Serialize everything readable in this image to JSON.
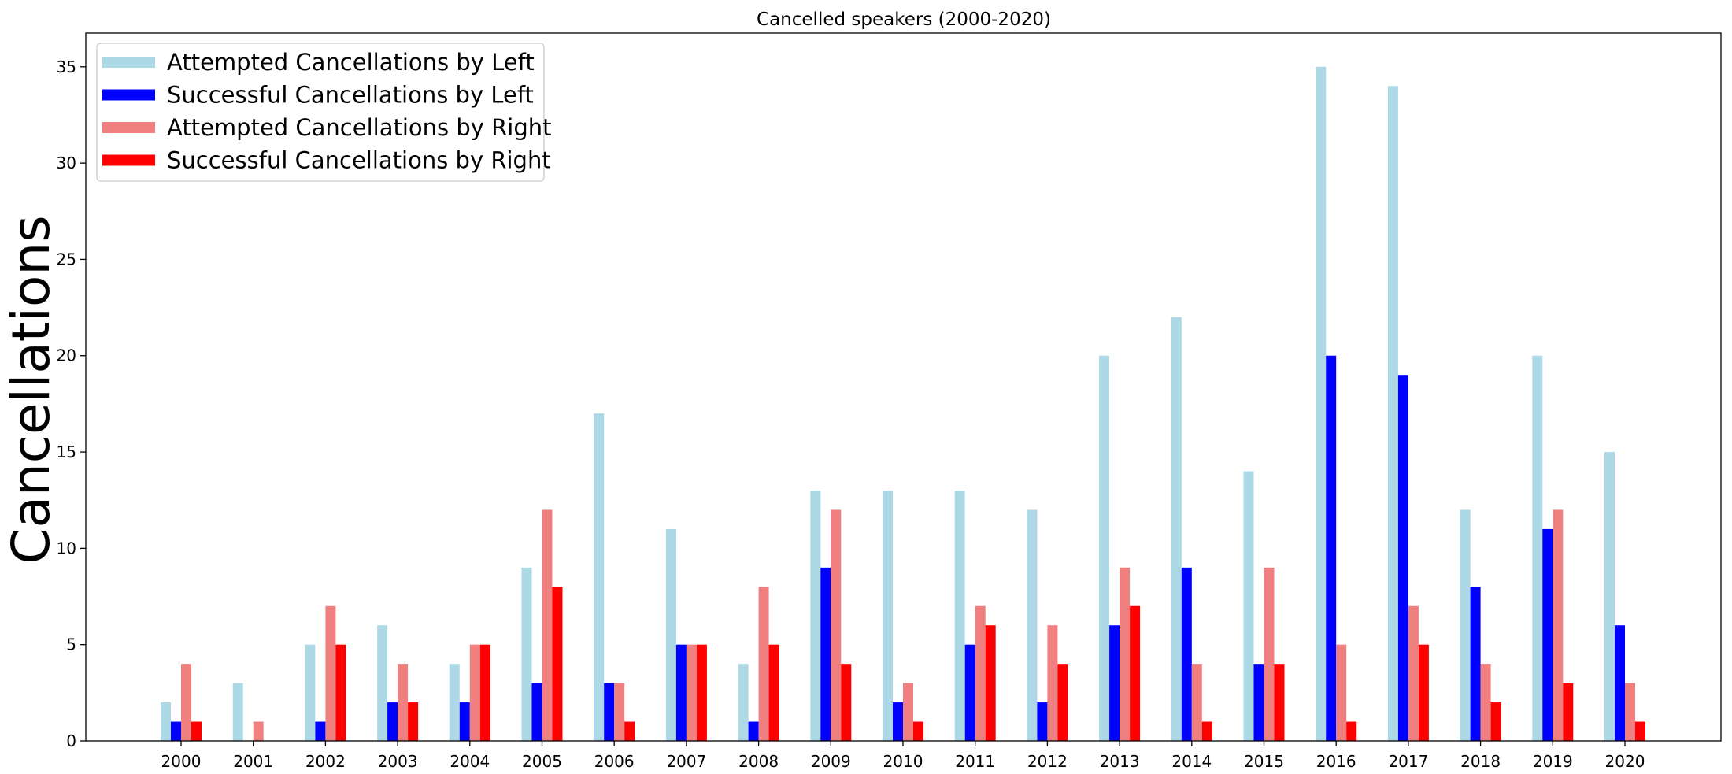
{
  "chart_data": {
    "type": "bar",
    "title": "Cancelled speakers (2000-2020)",
    "xlabel": "",
    "ylabel": "Cancellations",
    "ylim": [
      0,
      36.75
    ],
    "yticks": [
      0,
      5,
      10,
      15,
      20,
      25,
      30,
      35
    ],
    "grid": false,
    "legend_position": "top-left",
    "categories": [
      "2000",
      "2001",
      "2002",
      "2003",
      "2004",
      "2005",
      "2006",
      "2007",
      "2008",
      "2009",
      "2010",
      "2011",
      "2012",
      "2013",
      "2014",
      "2015",
      "2016",
      "2017",
      "2018",
      "2019",
      "2020"
    ],
    "series": [
      {
        "name": "Attempted Cancellations by Left",
        "color": "#add8e6",
        "values": [
          2,
          3,
          5,
          6,
          4,
          9,
          17,
          11,
          4,
          13,
          13,
          13,
          12,
          20,
          22,
          14,
          35,
          34,
          12,
          20,
          15
        ]
      },
      {
        "name": "Successful Cancellations by Left",
        "color": "#0000ff",
        "values": [
          1,
          0,
          1,
          2,
          2,
          3,
          3,
          5,
          1,
          9,
          2,
          5,
          2,
          6,
          9,
          4,
          20,
          19,
          8,
          11,
          6
        ]
      },
      {
        "name": "Attempted Cancellations by Right",
        "color": "#f08080",
        "values": [
          4,
          1,
          7,
          4,
          5,
          12,
          3,
          5,
          8,
          12,
          3,
          7,
          6,
          9,
          4,
          9,
          5,
          7,
          4,
          12,
          3
        ]
      },
      {
        "name": "Successful Cancellations by Right",
        "color": "#ff0000",
        "values": [
          1,
          0,
          5,
          2,
          5,
          8,
          1,
          5,
          5,
          4,
          1,
          6,
          4,
          7,
          1,
          4,
          1,
          5,
          2,
          3,
          1
        ]
      }
    ]
  }
}
